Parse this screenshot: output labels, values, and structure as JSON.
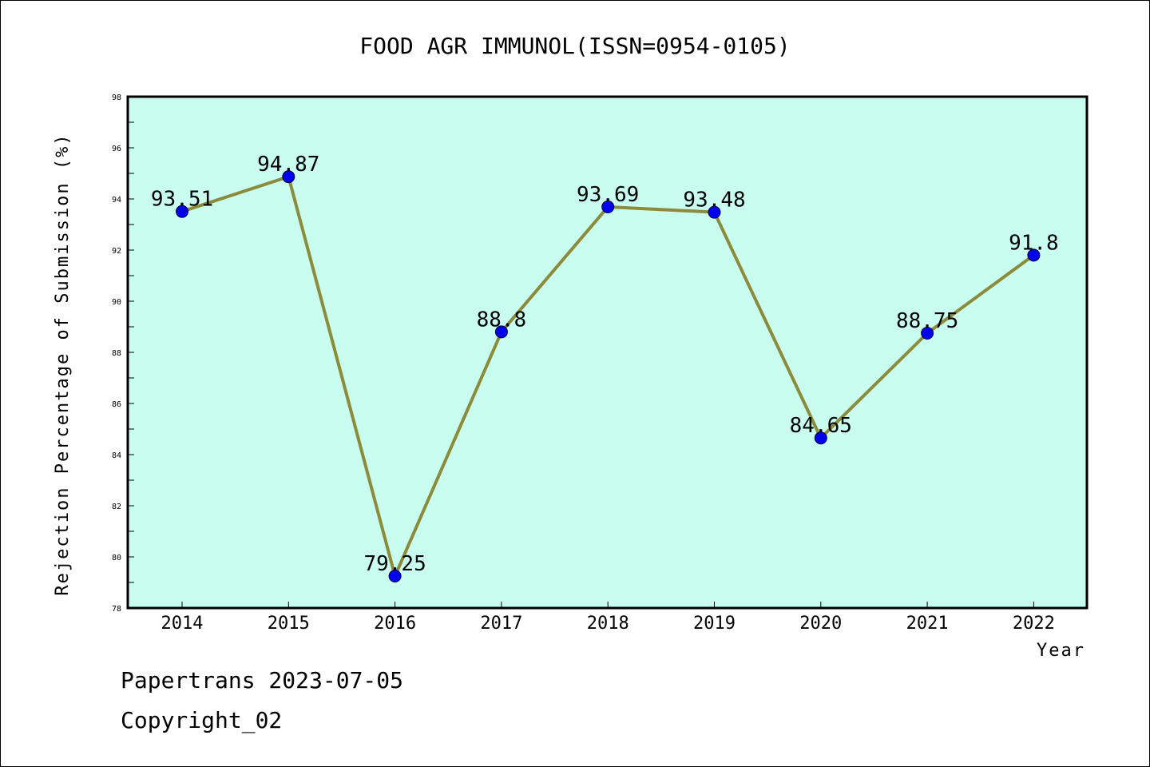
{
  "chart_data": {
    "type": "line",
    "title": "FOOD AGR IMMUNOL(ISSN=0954-0105)",
    "xlabel": "Year",
    "ylabel": "Rejection Percentage of Submission (%)",
    "categories": [
      "2014",
      "2015",
      "2016",
      "2017",
      "2018",
      "2019",
      "2020",
      "2021",
      "2022"
    ],
    "values": [
      93.51,
      94.87,
      79.25,
      88.8,
      93.69,
      93.48,
      84.65,
      88.75,
      91.8
    ],
    "value_labels": [
      "93.51",
      "94.87",
      "79.25",
      "88.8",
      "93.69",
      "93.48",
      "84.65",
      "88.75",
      "91.8"
    ],
    "ylim": [
      78,
      98
    ],
    "yticks": [
      "78",
      "80",
      "82",
      "84",
      "86",
      "88",
      "90",
      "92",
      "94",
      "96",
      "98"
    ],
    "grid": false,
    "legend": "none",
    "colors": {
      "plot_background": "#c8fdf0",
      "line": "#8b8b3a",
      "marker": "#0000ee"
    }
  },
  "footer": {
    "line1": "Papertrans 2023-07-05",
    "line2": "Copyright_02"
  }
}
